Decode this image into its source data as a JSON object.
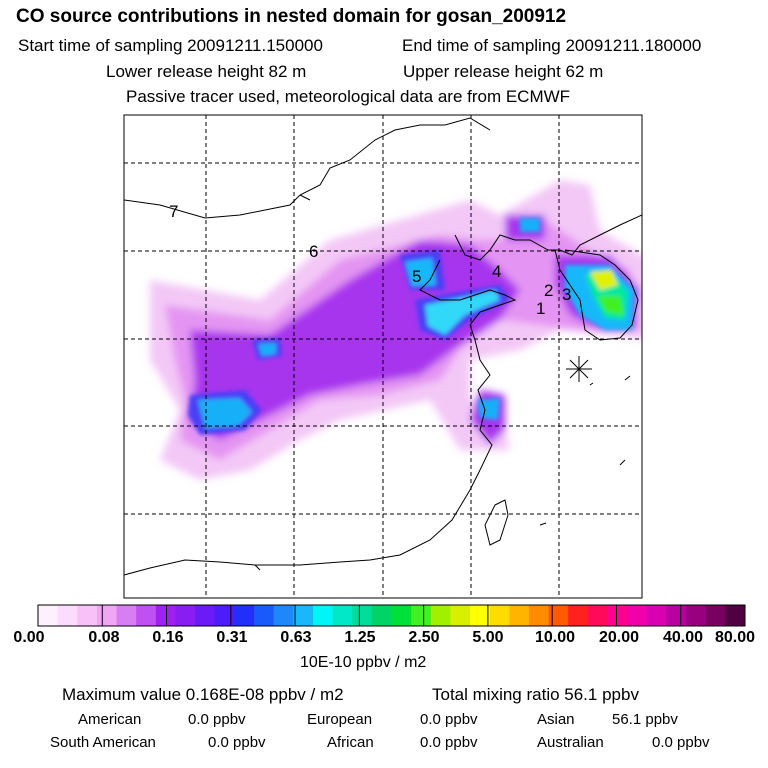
{
  "header": {
    "title": "CO  source contributions in nested domain for gosan_200912",
    "start_time": "Start time of sampling 20091211.150000",
    "end_time": "End time of sampling 20091211.180000",
    "lower_height": "Lower release height   82 m",
    "upper_height": "Upper release height   62 m",
    "tracer_note": "Passive tracer used, meteorological data are from ECMWF"
  },
  "map": {
    "labels": [
      {
        "text": "7"
      },
      {
        "text": "6"
      },
      {
        "text": "5"
      },
      {
        "text": "4"
      },
      {
        "text": "2"
      },
      {
        "text": "3"
      },
      {
        "text": "1"
      }
    ],
    "receptor_marker": "asterisk-icon"
  },
  "colorbar": {
    "colors": [
      "#fef1fe",
      "#fcdcfc",
      "#f8c2f8",
      "#f0a6f4",
      "#d77ff2",
      "#c050f2",
      "#a020f0",
      "#8a1ef2",
      "#6a1bf6",
      "#4c1df8",
      "#2030fa",
      "#1b5afa",
      "#1e88fa",
      "#18b8fa",
      "#00f6f6",
      "#00e8c8",
      "#00dc9a",
      "#00d466",
      "#00e03a",
      "#40f020",
      "#a0f000",
      "#d8f000",
      "#ffff00",
      "#ffdc00",
      "#ffb400",
      "#ff8c00",
      "#ff5a00",
      "#ff2020",
      "#ff0a5a",
      "#ff0090",
      "#f000a8",
      "#d800b0",
      "#b800a0",
      "#980080",
      "#780060",
      "#500040"
    ],
    "ticks": [
      "0.00",
      "0.08",
      "0.16",
      "0.31",
      "0.63",
      "1.25",
      "2.50",
      "5.00",
      "10.00",
      "20.00",
      "40.00",
      "80.00"
    ],
    "units": "10E-10 ppbv / m2"
  },
  "summary": {
    "max_value": "Maximum value  0.168E-08 ppbv / m2",
    "total_mixing": "Total mixing ratio       56.1 ppbv",
    "sources": [
      {
        "label": "American",
        "value": "0.0 ppbv"
      },
      {
        "label": "European",
        "value": "0.0 ppbv"
      },
      {
        "label": "Asian",
        "value": "56.1 ppbv"
      },
      {
        "label": "South American",
        "value": "0.0 ppbv"
      },
      {
        "label": "African",
        "value": "0.0 ppbv"
      },
      {
        "label": "Australian",
        "value": "0.0 ppbv"
      }
    ]
  }
}
